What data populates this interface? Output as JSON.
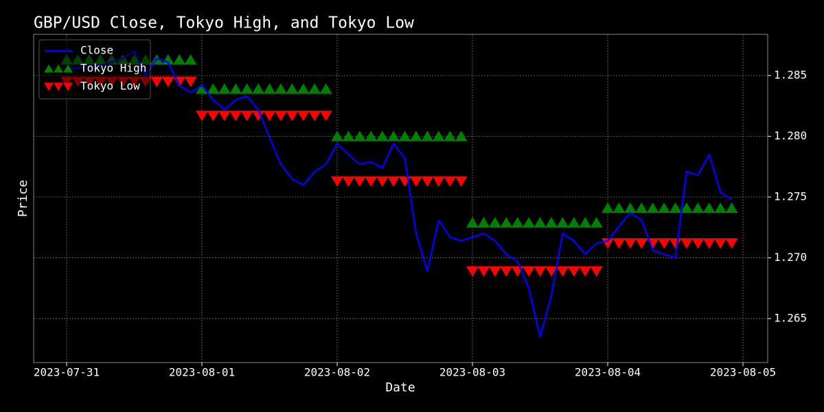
{
  "chart_data": {
    "type": "line",
    "title": "GBP/USD Close, Tokyo High, and Tokyo Low",
    "x_label": "Date",
    "y_label": "Price",
    "x": [
      "2023-07-31T00:00",
      "2023-07-31T02:00",
      "2023-07-31T04:00",
      "2023-07-31T06:00",
      "2023-07-31T08:00",
      "2023-07-31T10:00",
      "2023-07-31T12:00",
      "2023-07-31T14:00",
      "2023-07-31T16:00",
      "2023-07-31T18:00",
      "2023-07-31T20:00",
      "2023-07-31T22:00",
      "2023-08-01T00:00",
      "2023-08-01T02:00",
      "2023-08-01T04:00",
      "2023-08-01T06:00",
      "2023-08-01T08:00",
      "2023-08-01T10:00",
      "2023-08-01T12:00",
      "2023-08-01T14:00",
      "2023-08-01T16:00",
      "2023-08-01T18:00",
      "2023-08-01T20:00",
      "2023-08-01T22:00",
      "2023-08-02T00:00",
      "2023-08-02T02:00",
      "2023-08-02T04:00",
      "2023-08-02T06:00",
      "2023-08-02T08:00",
      "2023-08-02T10:00",
      "2023-08-02T12:00",
      "2023-08-02T14:00",
      "2023-08-02T16:00",
      "2023-08-02T18:00",
      "2023-08-02T20:00",
      "2023-08-02T22:00",
      "2023-08-03T00:00",
      "2023-08-03T02:00",
      "2023-08-03T04:00",
      "2023-08-03T06:00",
      "2023-08-03T08:00",
      "2023-08-03T10:00",
      "2023-08-03T12:00",
      "2023-08-03T14:00",
      "2023-08-03T16:00",
      "2023-08-03T18:00",
      "2023-08-03T20:00",
      "2023-08-03T22:00",
      "2023-08-04T00:00",
      "2023-08-04T02:00",
      "2023-08-04T04:00",
      "2023-08-04T06:00",
      "2023-08-04T08:00",
      "2023-08-04T10:00",
      "2023-08-04T12:00",
      "2023-08-04T14:00",
      "2023-08-04T16:00",
      "2023-08-04T18:00",
      "2023-08-04T20:00",
      "2023-08-04T22:00"
    ],
    "series": [
      {
        "name": "Close",
        "color": "#0000ff",
        "style": "line",
        "values": [
          1.2856,
          1.2856,
          1.2858,
          1.2858,
          1.2861,
          1.2864,
          1.287,
          1.285,
          1.2864,
          1.2861,
          1.2842,
          1.2836,
          1.2842,
          1.283,
          1.2822,
          1.283,
          1.2833,
          1.2822,
          1.2799,
          1.2777,
          1.2765,
          1.276,
          1.2771,
          1.2777,
          1.2794,
          1.2785,
          1.2777,
          1.2779,
          1.2774,
          1.2794,
          1.2782,
          1.272,
          1.2689,
          1.2731,
          1.2717,
          1.2714,
          1.2717,
          1.272,
          1.2714,
          1.2703,
          1.2697,
          1.2675,
          1.2635,
          1.2669,
          1.272,
          1.2714,
          1.2703,
          1.2712,
          1.2714,
          1.2726,
          1.2737,
          1.2731,
          1.2706,
          1.2703,
          1.27,
          1.2771,
          1.2768,
          1.2785,
          1.2754,
          1.2748
        ]
      },
      {
        "name": "Tokyo High",
        "color": "#008000",
        "style": "triangle-up",
        "values": [
          1.2863,
          1.2863,
          1.2863,
          1.2863,
          1.2863,
          1.2863,
          1.2863,
          1.2863,
          1.2863,
          1.2863,
          1.2863,
          1.2863,
          1.2839,
          1.2839,
          1.2839,
          1.2839,
          1.2839,
          1.2839,
          1.2839,
          1.2839,
          1.2839,
          1.2839,
          1.2839,
          1.2839,
          1.28,
          1.28,
          1.28,
          1.28,
          1.28,
          1.28,
          1.28,
          1.28,
          1.28,
          1.28,
          1.28,
          1.28,
          1.2729,
          1.2729,
          1.2729,
          1.2729,
          1.2729,
          1.2729,
          1.2729,
          1.2729,
          1.2729,
          1.2729,
          1.2729,
          1.2729,
          1.2741,
          1.2741,
          1.2741,
          1.2741,
          1.2741,
          1.2741,
          1.2741,
          1.2741,
          1.2741,
          1.2741,
          1.2741,
          1.2741
        ]
      },
      {
        "name": "Tokyo Low",
        "color": "#ff0000",
        "style": "triangle-down",
        "values": [
          1.2845,
          1.2845,
          1.2845,
          1.2845,
          1.2845,
          1.2845,
          1.2845,
          1.2845,
          1.2845,
          1.2845,
          1.2845,
          1.2845,
          1.2817,
          1.2817,
          1.2817,
          1.2817,
          1.2817,
          1.2817,
          1.2817,
          1.2817,
          1.2817,
          1.2817,
          1.2817,
          1.2817,
          1.2763,
          1.2763,
          1.2763,
          1.2763,
          1.2763,
          1.2763,
          1.2763,
          1.2763,
          1.2763,
          1.2763,
          1.2763,
          1.2763,
          1.2689,
          1.2689,
          1.2689,
          1.2689,
          1.2689,
          1.2689,
          1.2689,
          1.2689,
          1.2689,
          1.2689,
          1.2689,
          1.2689,
          1.2712,
          1.2712,
          1.2712,
          1.2712,
          1.2712,
          1.2712,
          1.2712,
          1.2712,
          1.2712,
          1.2712,
          1.2712,
          1.2712
        ]
      }
    ],
    "xlim": [
      "2023-07-30T18:09",
      "2023-08-05T04:23"
    ],
    "xticks": [
      "2023-07-31",
      "2023-08-01",
      "2023-08-02",
      "2023-08-03",
      "2023-08-04",
      "2023-08-05"
    ],
    "ylim": [
      1.26138,
      1.28839
    ],
    "yticks": [
      1.265,
      {
        "value": 1.27,
        "label": "1.270"
      },
      1.275,
      {
        "value": 1.28,
        "label": "1.280"
      },
      1.285
    ],
    "y_axis_side": "right",
    "grid": true,
    "legend": "upper left"
  }
}
